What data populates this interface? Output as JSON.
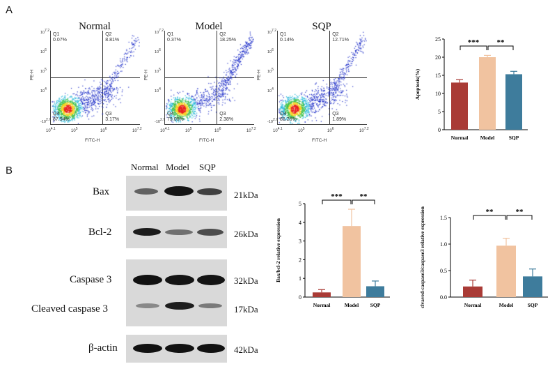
{
  "panels": {
    "a": "A",
    "b": "B"
  },
  "flow": {
    "x_axis_label": "FITC-H",
    "y_axis_label": "PE-H",
    "x_ticks": [
      "10^4.1",
      "10^5",
      "10^6",
      "10^7.2"
    ],
    "y_ticks": [
      "10^7.2",
      "10^6",
      "10^5",
      "10^4",
      "-10^2.7"
    ],
    "plots": [
      {
        "title": "Normal",
        "q1": "Q1",
        "q1_val": "0.07%",
        "q2": "Q2",
        "q2_val": "8.81%",
        "q3": "Q3",
        "q3_val": "3.17%",
        "q4": "Q4",
        "q4_val": "87.94%"
      },
      {
        "title": "Model",
        "q1": "Q1",
        "q1_val": "0.37%",
        "q2": "Q2",
        "q2_val": "18.25%",
        "q3": "Q3",
        "q3_val": "2.38%",
        "q4": "Q4",
        "q4_val": "79.00%"
      },
      {
        "title": "SQP",
        "q1": "Q1",
        "q1_val": "0.14%",
        "q2": "Q2",
        "q2_val": "12.71%",
        "q3": "Q3",
        "q3_val": "1.89%",
        "q4": "Q4",
        "q4_val": "85.26%"
      }
    ]
  },
  "blot": {
    "lanes": [
      "Normal",
      "Model",
      "SQP"
    ],
    "rows": [
      {
        "label": "Bax",
        "kda": "21kDa"
      },
      {
        "label": "Bcl-2",
        "kda": "26kDa"
      },
      {
        "label": "Caspase 3",
        "kda": "32kDa"
      },
      {
        "label": "Cleaved caspase 3",
        "kda": "17kDa"
      },
      {
        "label": "β-actin",
        "kda": "42kDa"
      }
    ]
  },
  "colors": {
    "normal": "#a93b36",
    "model": "#f1c3a0",
    "sqp": "#3e7c9c"
  },
  "chart_data": [
    {
      "type": "bar",
      "ylabel": "Apoptosis(%)",
      "categories": [
        "Normal",
        "Model",
        "SQP"
      ],
      "values": [
        13.0,
        20.0,
        15.3
      ],
      "errors": [
        0.8,
        0.5,
        0.8
      ],
      "ylim": [
        0,
        25
      ],
      "yticks": [
        "0",
        "5",
        "10",
        "15",
        "20",
        "25"
      ],
      "significance": [
        "***",
        "**"
      ]
    },
    {
      "type": "bar",
      "ylabel": "Bax/bcl-2 relative expression",
      "categories": [
        "Normal",
        "Model",
        "SQP"
      ],
      "values": [
        0.25,
        3.8,
        0.58
      ],
      "errors": [
        0.15,
        0.9,
        0.28
      ],
      "ylim": [
        0,
        5
      ],
      "yticks": [
        "0",
        "1",
        "2",
        "3",
        "4",
        "5"
      ],
      "significance": [
        "***",
        "**"
      ]
    },
    {
      "type": "bar",
      "ylabel": "clvaved-caspase3/caspase3 relative expression",
      "categories": [
        "Normal",
        "Model",
        "SQP"
      ],
      "values": [
        0.2,
        0.97,
        0.39
      ],
      "errors": [
        0.12,
        0.14,
        0.14
      ],
      "ylim": [
        0,
        1.5
      ],
      "yticks": [
        "0.0",
        "0.5",
        "1.0",
        "1.5"
      ],
      "significance": [
        "**",
        "**"
      ]
    }
  ]
}
